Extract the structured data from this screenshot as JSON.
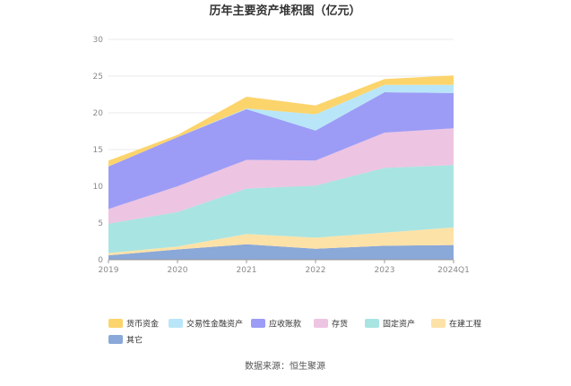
{
  "chart_data": {
    "type": "area",
    "stacked": true,
    "title": "历年主要资产堆积图（亿元）",
    "categories": [
      "2019",
      "2020",
      "2021",
      "2022",
      "2023",
      "2024Q1"
    ],
    "ylim": [
      0,
      30
    ],
    "yticks": [
      "0",
      "5",
      "10",
      "15",
      "20",
      "25",
      "30"
    ],
    "grid": true,
    "legend_position": "bottom",
    "series": [
      {
        "name": "其它",
        "color": "#8aa8d8",
        "values": [
          0.6,
          1.4,
          2.1,
          1.5,
          1.9,
          2.0
        ]
      },
      {
        "name": "在建工程",
        "color": "#fde2a8",
        "values": [
          0.3,
          0.4,
          1.4,
          1.5,
          1.8,
          2.4
        ]
      },
      {
        "name": "固定资产",
        "color": "#a8e4e2",
        "values": [
          4.0,
          4.7,
          6.2,
          7.1,
          8.8,
          8.5
        ]
      },
      {
        "name": "存货",
        "color": "#edc4e2",
        "values": [
          2.0,
          3.5,
          3.9,
          3.4,
          4.8,
          5.0
        ]
      },
      {
        "name": "应收账款",
        "color": "#9c9cf6",
        "values": [
          5.8,
          6.7,
          6.9,
          4.1,
          5.5,
          4.8
        ]
      },
      {
        "name": "交易性金融资产",
        "color": "#b8e6f8",
        "values": [
          0.0,
          0.0,
          0.1,
          2.2,
          1.0,
          1.1
        ]
      },
      {
        "name": "货币资金",
        "color": "#fcd46c",
        "values": [
          0.8,
          0.3,
          1.6,
          1.2,
          0.8,
          1.3
        ]
      }
    ],
    "legend_order": [
      "货币资金",
      "交易性金融资产",
      "应收账款",
      "存货",
      "固定资产",
      "在建工程",
      "其它"
    ]
  },
  "source_text": "数据来源：恒生聚源",
  "colors": {
    "grid": "#e8e8e8",
    "axis": "#999999",
    "text": "#8a8a8a"
  }
}
